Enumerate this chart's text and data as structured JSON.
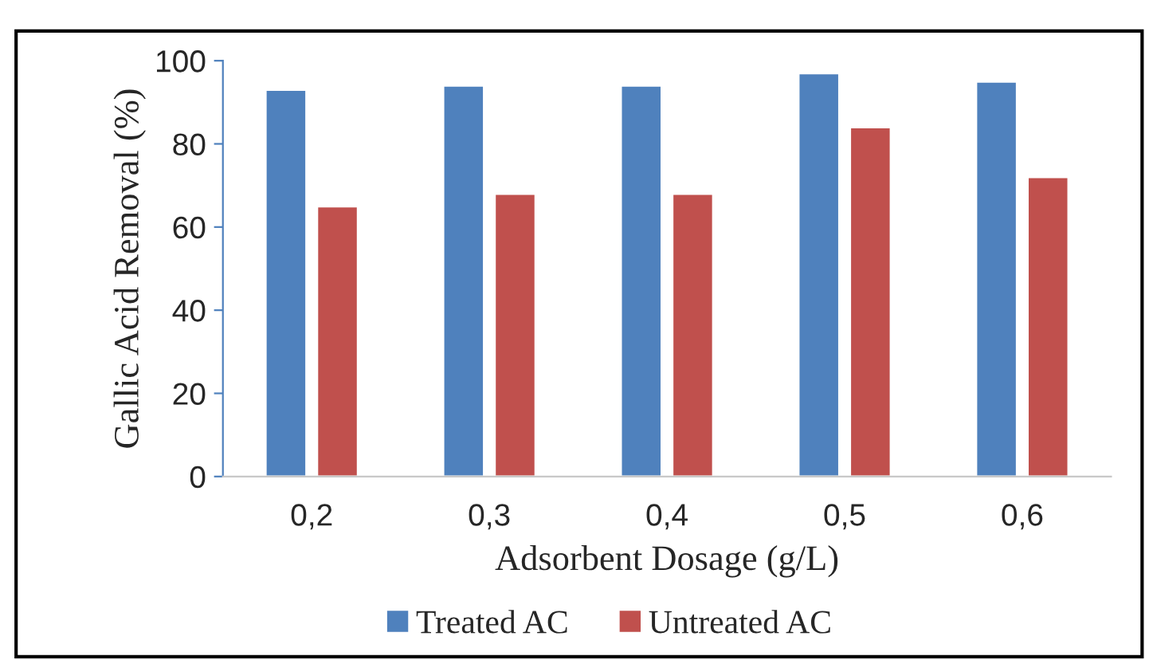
{
  "chart_data": {
    "type": "bar",
    "xlabel": "Adsorbent Dosage (g/L)",
    "ylabel": "Gallic Acid Removal (%)",
    "categories": [
      "0,2",
      "0,3",
      "0,4",
      "0,5",
      "0,6"
    ],
    "series": [
      {
        "name": "Treated AC",
        "color": "#4f81bd",
        "values": [
          93,
          94,
          94,
          97,
          95
        ]
      },
      {
        "name": "Untreated AC",
        "color": "#c0504d",
        "values": [
          65,
          68,
          68,
          84,
          72
        ]
      }
    ],
    "ylim": [
      0,
      100
    ],
    "yticks": [
      0,
      20,
      40,
      60,
      80,
      100
    ],
    "grid": false,
    "legend": "bottom"
  }
}
